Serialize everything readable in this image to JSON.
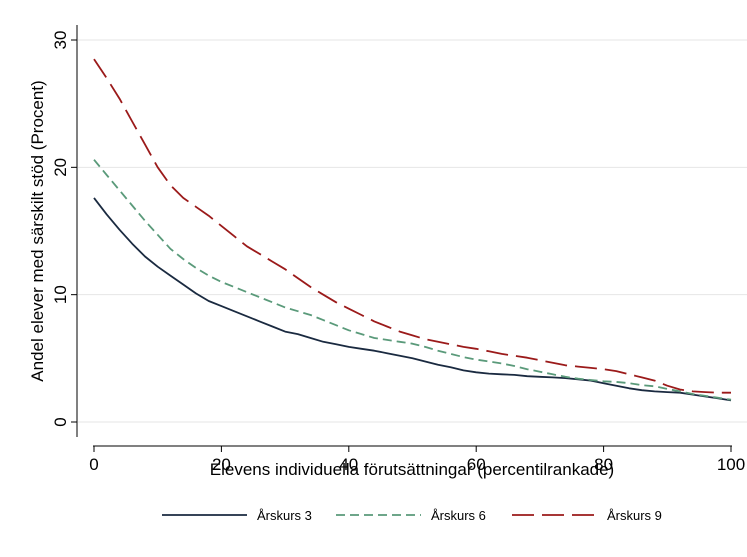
{
  "chart_data": {
    "type": "line",
    "title": "",
    "xlabel": "Elevens individuella förutsättningar (percentilrankade)",
    "ylabel": "Andel elever med särskilt stöd (Procent)",
    "xlim": [
      0,
      100
    ],
    "ylim": [
      0,
      30
    ],
    "xticks": [
      0,
      20,
      40,
      60,
      80,
      100
    ],
    "yticks": [
      0,
      10,
      20,
      30
    ],
    "grid": "horizontal",
    "legend_position": "bottom",
    "x": [
      0,
      2,
      4,
      6,
      8,
      10,
      12,
      14,
      16,
      18,
      20,
      22,
      24,
      26,
      28,
      30,
      32,
      34,
      36,
      38,
      40,
      42,
      44,
      46,
      48,
      50,
      52,
      54,
      56,
      58,
      60,
      62,
      64,
      66,
      68,
      70,
      72,
      74,
      76,
      78,
      80,
      82,
      84,
      86,
      88,
      90,
      92,
      94,
      96,
      98,
      100
    ],
    "series": [
      {
        "name": "Årskurs 3",
        "color": "#1a2a40",
        "style": "solid",
        "values": [
          17.6,
          16.3,
          15.1,
          14.0,
          13.0,
          12.2,
          11.5,
          10.8,
          10.1,
          9.5,
          9.1,
          8.7,
          8.3,
          7.9,
          7.5,
          7.1,
          6.9,
          6.6,
          6.3,
          6.1,
          5.9,
          5.75,
          5.6,
          5.4,
          5.2,
          5.0,
          4.75,
          4.5,
          4.3,
          4.05,
          3.9,
          3.8,
          3.75,
          3.7,
          3.6,
          3.55,
          3.5,
          3.45,
          3.35,
          3.25,
          3.05,
          2.85,
          2.65,
          2.5,
          2.4,
          2.35,
          2.3,
          2.15,
          2.0,
          1.85,
          1.7
        ]
      },
      {
        "name": "Årskurs 6",
        "color": "#5a9a7a",
        "style": "dashed",
        "values": [
          20.6,
          19.4,
          18.2,
          17.0,
          15.8,
          14.7,
          13.6,
          12.8,
          12.1,
          11.5,
          11.0,
          10.6,
          10.2,
          9.8,
          9.4,
          9.0,
          8.7,
          8.4,
          8.0,
          7.6,
          7.2,
          6.9,
          6.6,
          6.45,
          6.3,
          6.15,
          5.9,
          5.6,
          5.35,
          5.1,
          4.9,
          4.75,
          4.6,
          4.4,
          4.15,
          3.95,
          3.75,
          3.55,
          3.4,
          3.3,
          3.2,
          3.15,
          3.05,
          2.9,
          2.8,
          2.6,
          2.4,
          2.2,
          2.05,
          1.9,
          1.75
        ]
      },
      {
        "name": "Årskurs 9",
        "color": "#9b1a1a",
        "style": "longdash",
        "values": [
          28.5,
          27.0,
          25.4,
          23.6,
          21.8,
          20.0,
          18.6,
          17.6,
          16.9,
          16.2,
          15.4,
          14.6,
          13.8,
          13.2,
          12.6,
          12.0,
          11.3,
          10.6,
          10.0,
          9.4,
          8.9,
          8.4,
          7.9,
          7.5,
          7.1,
          6.8,
          6.5,
          6.3,
          6.1,
          5.9,
          5.75,
          5.55,
          5.35,
          5.2,
          5.05,
          4.85,
          4.65,
          4.45,
          4.35,
          4.25,
          4.15,
          4.0,
          3.75,
          3.5,
          3.25,
          2.85,
          2.55,
          2.4,
          2.35,
          2.3,
          2.3
        ]
      }
    ]
  }
}
